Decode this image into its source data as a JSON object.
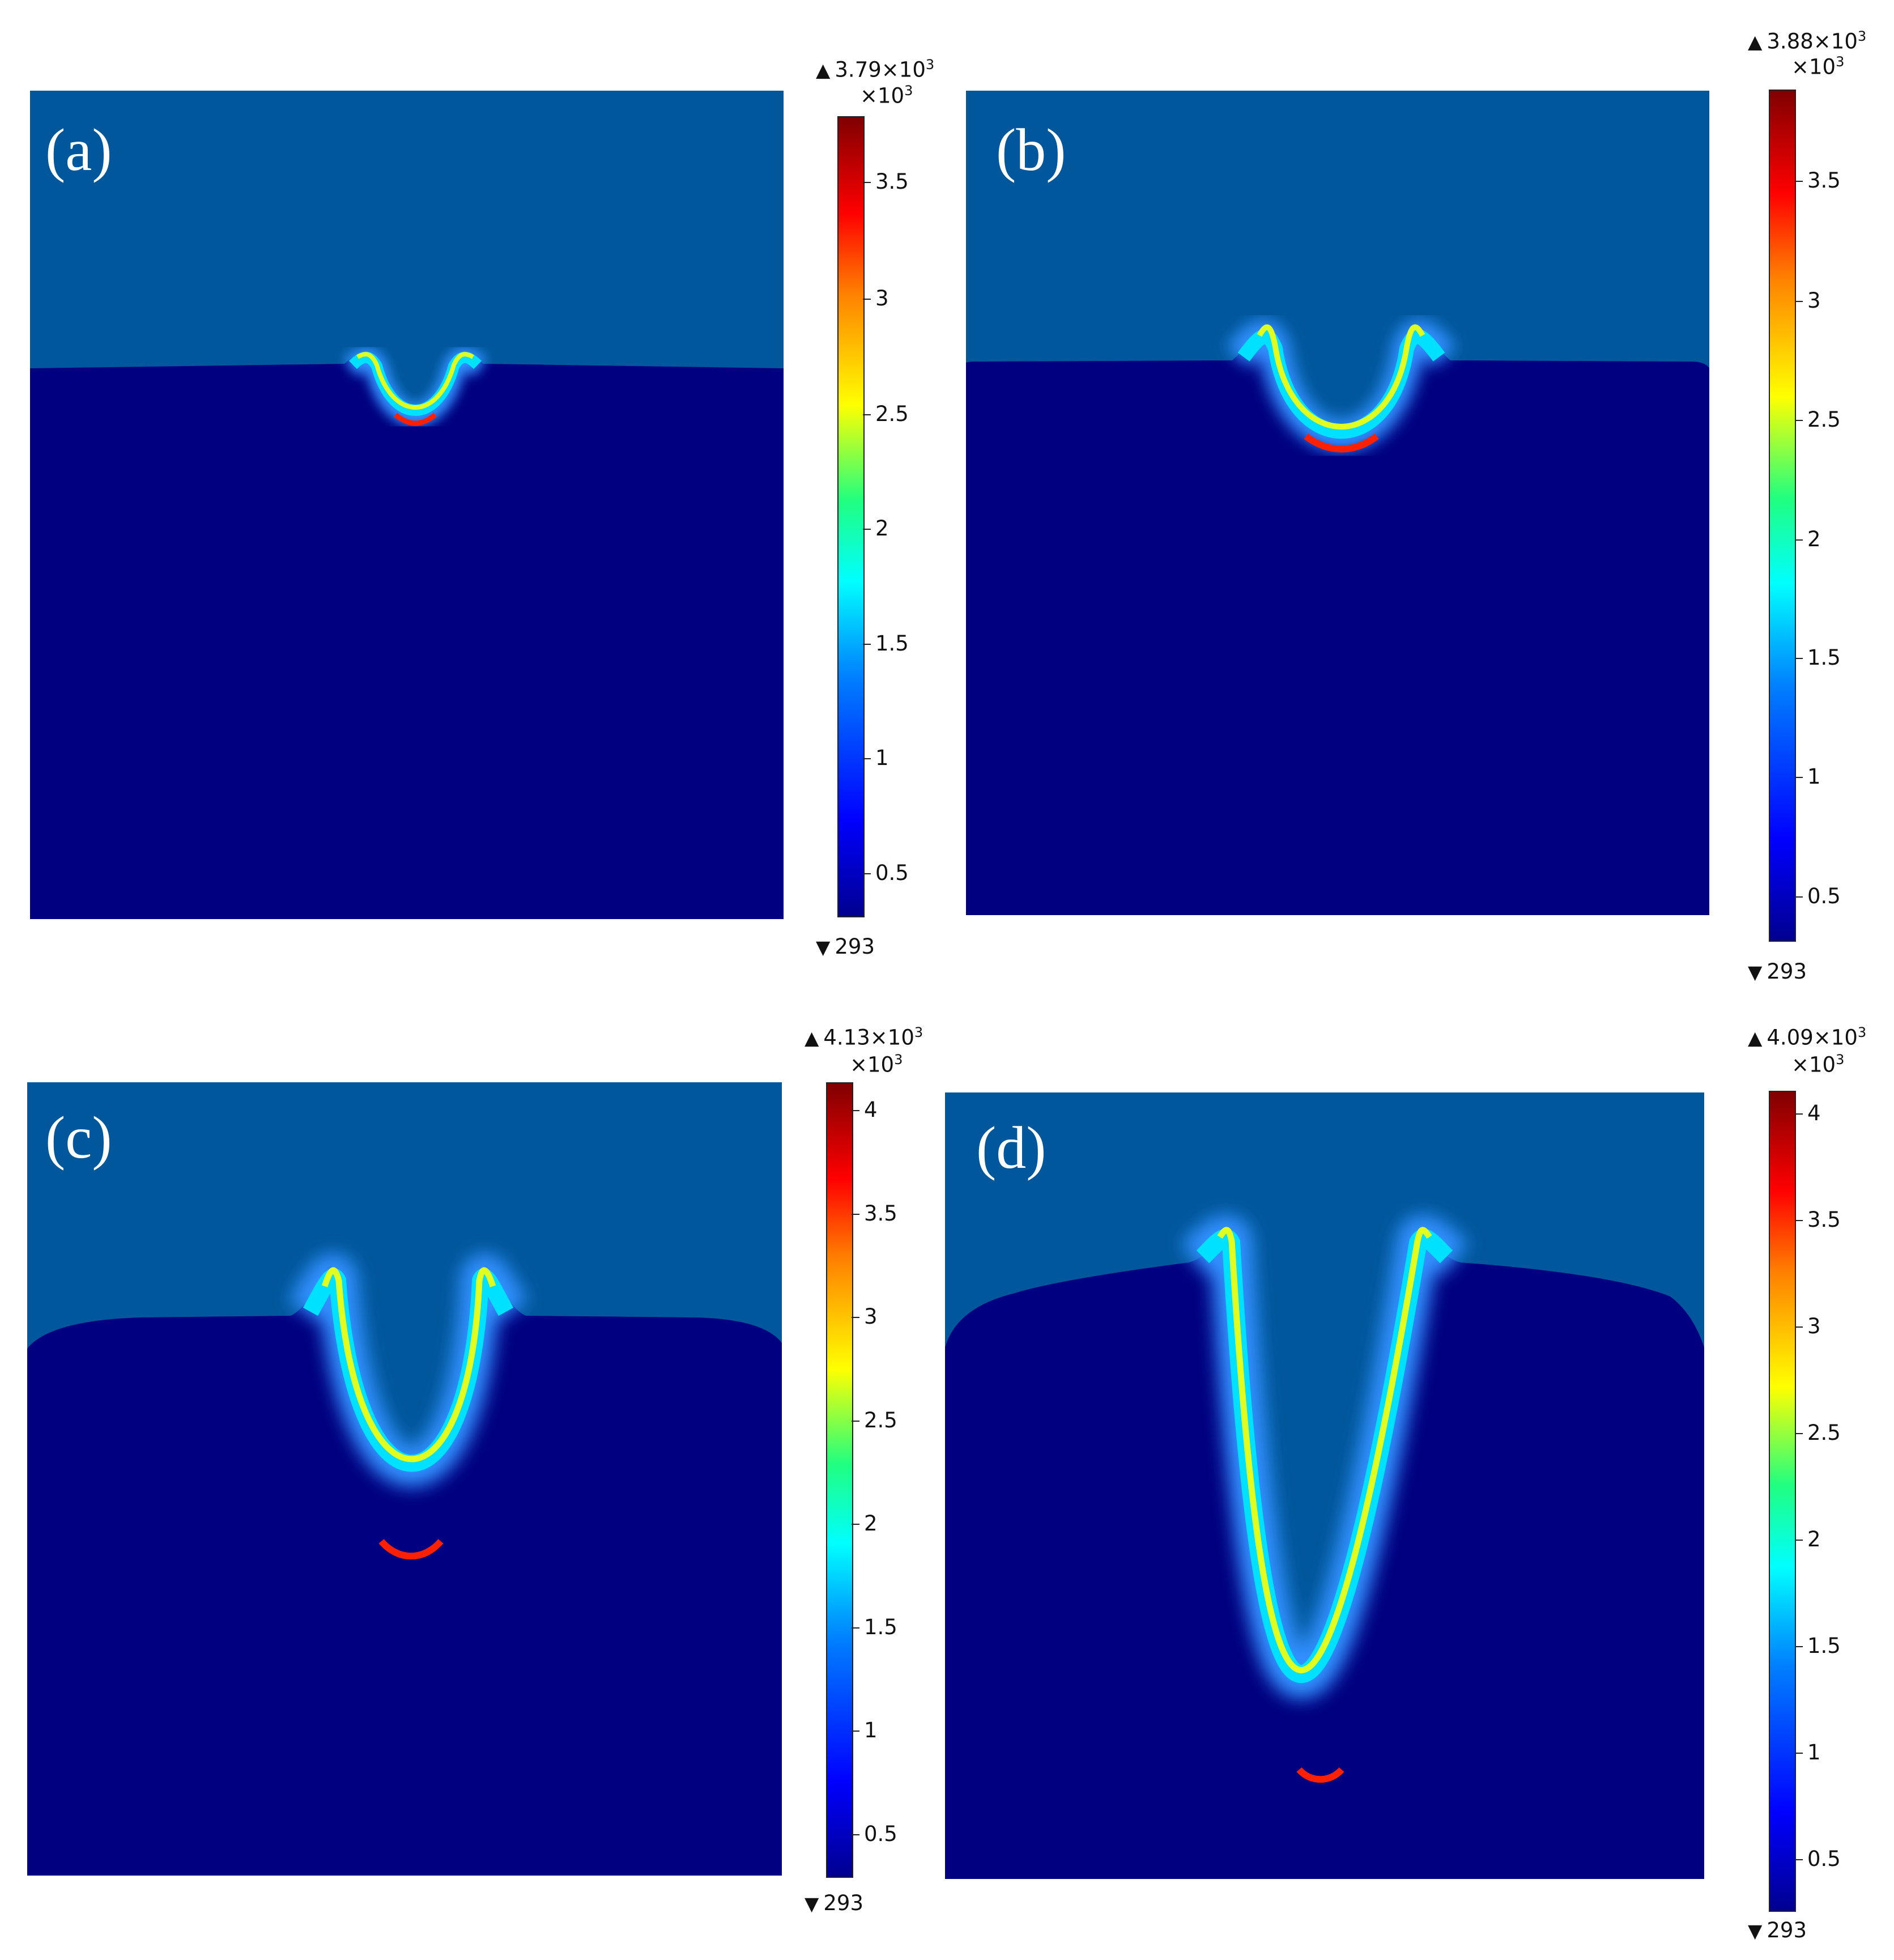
{
  "colors": {
    "air": "#00579b",
    "substrate": "#000080"
  },
  "panels": [
    {
      "label": "(a)",
      "max": "3.79×10",
      "max_exp": "3",
      "scale": "×10",
      "scale_exp": "3",
      "min": "293",
      "ticks": [
        "3.5",
        "3",
        "2.5",
        "2",
        "1.5",
        "1",
        "0.5"
      ]
    },
    {
      "label": "(b)",
      "max": "3.88×10",
      "max_exp": "3",
      "scale": "×10",
      "scale_exp": "3",
      "min": "293",
      "ticks": [
        "3.5",
        "3",
        "2.5",
        "2",
        "1.5",
        "1",
        "0.5"
      ]
    },
    {
      "label": "(c)",
      "max": "4.13×10",
      "max_exp": "3",
      "scale": "×10",
      "scale_exp": "3",
      "min": "293",
      "ticks": [
        "4",
        "3.5",
        "3",
        "2.5",
        "2",
        "1.5",
        "1",
        "0.5"
      ]
    },
    {
      "label": "(d)",
      "max": "4.09×10",
      "max_exp": "3",
      "scale": "×10",
      "scale_exp": "3",
      "min": "293",
      "ticks": [
        "4",
        "3.5",
        "3",
        "2.5",
        "2",
        "1.5",
        "1",
        "0.5"
      ]
    }
  ]
}
